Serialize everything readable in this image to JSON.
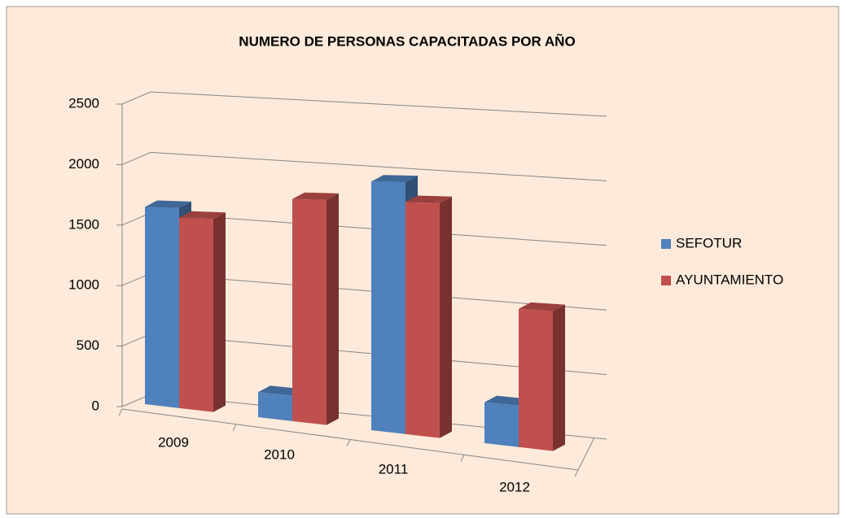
{
  "chart_data": {
    "type": "bar3d",
    "title": "NUMERO DE PERSONAS CAPACITADAS POR AÑO",
    "categories": [
      "2009",
      "2010",
      "2011",
      "2012"
    ],
    "series": [
      {
        "name": "SEFOTUR",
        "color": "#4f81bd",
        "values": [
          1650,
          200,
          1900,
          300
        ]
      },
      {
        "name": "AYUNTAMIENTO",
        "color": "#c0504d",
        "values": [
          1570,
          1750,
          1750,
          1000
        ]
      }
    ],
    "ylim": [
      0,
      2500
    ],
    "yticks": [
      0,
      500,
      1000,
      1500,
      2000,
      2500
    ],
    "grid": true,
    "legend": "right"
  }
}
